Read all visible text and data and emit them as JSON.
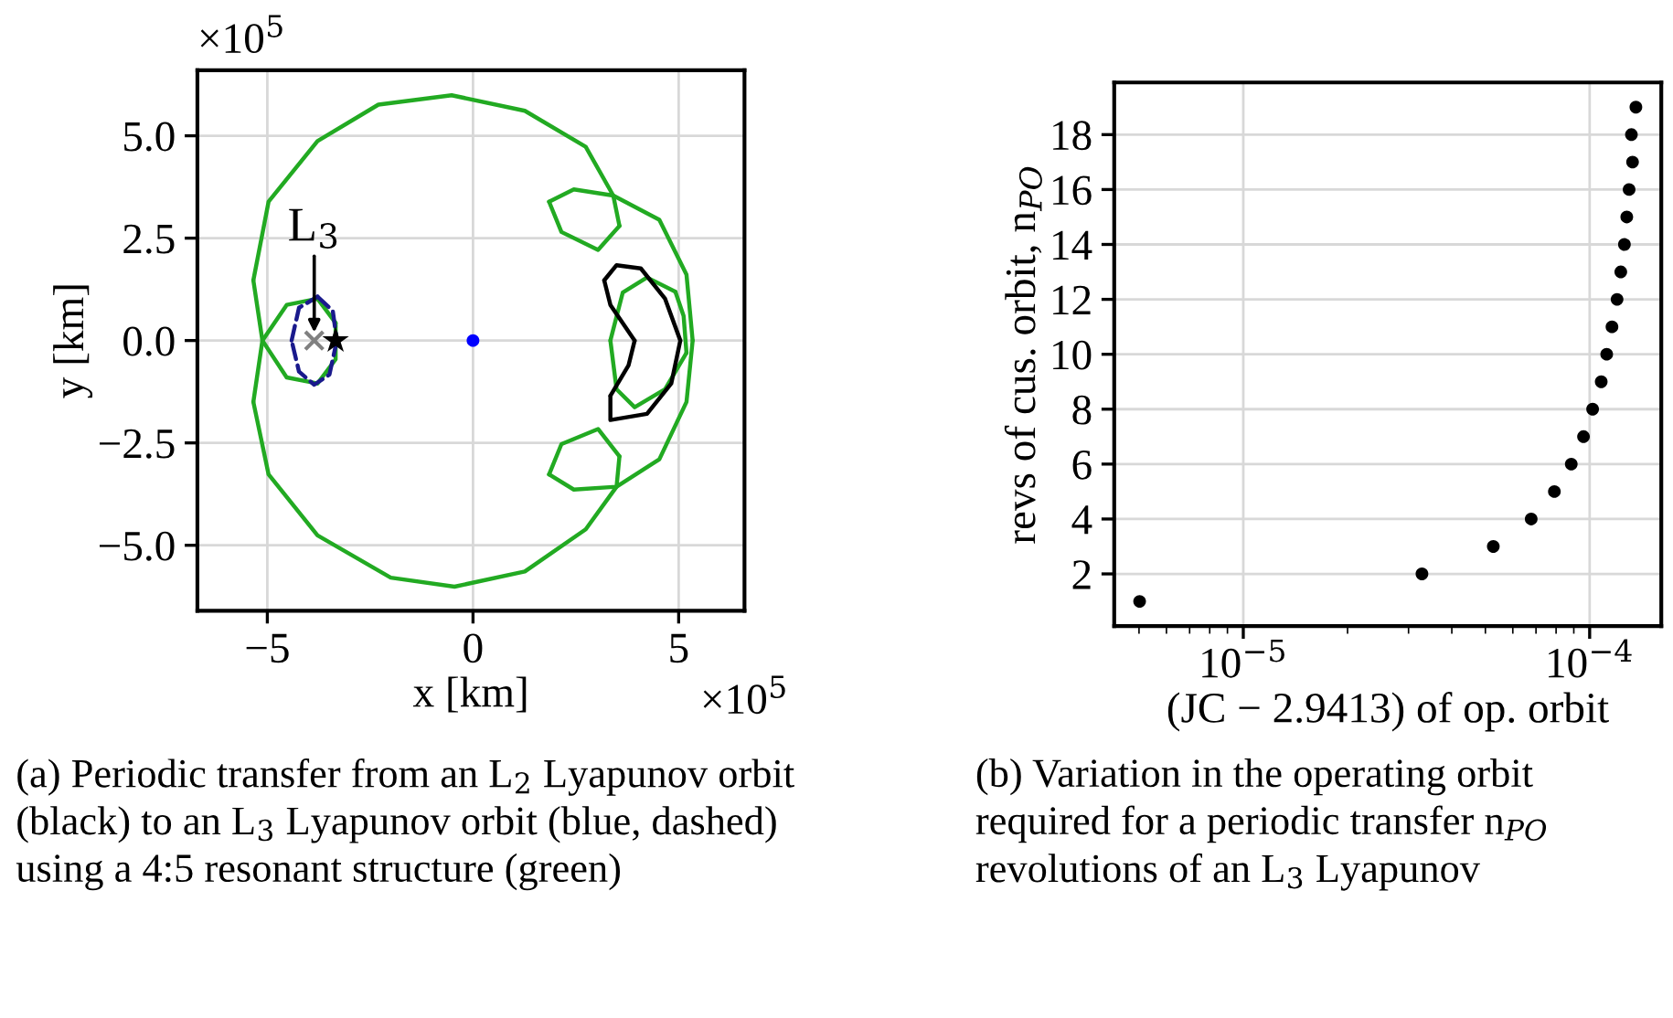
{
  "chart_data": [
    {
      "type": "line",
      "xlabel": "x [km]",
      "ylabel": "y [km]",
      "xlim": [
        -6.7,
        6.6
      ],
      "ylim": [
        -6.6,
        6.6
      ],
      "xticks": [
        {
          "value": -5,
          "label": "−5"
        },
        0,
        5
      ],
      "yticks": [
        {
          "value": -5,
          "label": "−5.0"
        },
        {
          "value": -2.5,
          "label": "−2.5"
        },
        {
          "value": 0,
          "label": "0.0"
        },
        2.5,
        {
          "value": 5,
          "label": "5.0"
        }
      ],
      "grid": true,
      "legend": false,
      "series": [
        {
          "color": "#22aa22",
          "marker": "none",
          "line_style": "solid",
          "x": [
            5.34,
            5.19,
            4.53,
            3.41,
            2.45,
            1.85,
            2.15,
            3.04,
            3.56,
            3.41,
            2.74,
            1.26,
            -0.52,
            -2.3,
            -3.78,
            -4.97,
            -5.34,
            -5.12,
            -4.53,
            -3.78,
            -3.34,
            -3.34,
            -3.78,
            -4.53,
            -5.12,
            -5.34,
            -4.97,
            -3.78,
            -2.0,
            -0.45,
            1.26,
            2.74,
            3.49,
            3.56,
            3.04,
            2.15,
            1.85,
            2.45,
            3.49,
            4.53,
            5.19,
            5.34
          ],
          "values": [
            0,
            1.61,
            2.95,
            3.54,
            3.69,
            3.39,
            2.65,
            2.21,
            2.8,
            3.54,
            4.73,
            5.61,
            5.99,
            5.76,
            4.87,
            3.39,
            1.47,
            0,
            -0.9,
            -1.05,
            -0.46,
            0.43,
            1.02,
            0.87,
            0,
            -1.5,
            -3.27,
            -4.76,
            -5.79,
            -6.01,
            -5.64,
            -4.61,
            -3.57,
            -2.83,
            -2.16,
            -2.53,
            -3.27,
            -3.64,
            -3.57,
            -2.9,
            -1.5,
            0
          ]
        },
        {
          "color": "#22aa22",
          "marker": "none",
          "line_style": "solid",
          "x": [
            4.92,
            4.23,
            3.64,
            3.34,
            3.49,
            3.93,
            4.67,
            5.19,
            5.12,
            4.92
          ],
          "values": [
            1.19,
            1.54,
            1.17,
            0,
            -1.19,
            -1.63,
            -1.19,
            -0.3,
            0.6,
            1.19
          ]
        },
        {
          "color": "#000000",
          "marker": "none",
          "line_style": "solid",
          "x": [
            3.93,
            3.34,
            3.19,
            3.49,
            4.08,
            4.67,
            5.04,
            4.82,
            4.23,
            3.34,
            3.34,
            3.78,
            3.93
          ],
          "values": [
            0,
            0.87,
            1.47,
            1.84,
            1.76,
            1.02,
            0,
            -1.05,
            -1.79,
            -1.94,
            -1.35,
            -0.61,
            0
          ]
        },
        {
          "color": "#1a1a8c",
          "marker": "none",
          "line_style": "dashed",
          "x": [
            -3.78,
            -3.41,
            -3.31,
            -3.49,
            -3.86,
            -4.23,
            -4.41,
            -4.23,
            -3.78
          ],
          "values": [
            1.07,
            0.73,
            0,
            -0.83,
            -1.08,
            -0.76,
            0,
            0.8,
            1.07
          ]
        },
        {
          "type": "scatter",
          "color": "#0000ff",
          "marker": "circle",
          "x": [
            0
          ],
          "values": [
            0
          ]
        },
        {
          "type": "scatter",
          "color": "#808080",
          "marker": "cross",
          "x": [
            -3.86
          ],
          "values": [
            0
          ]
        },
        {
          "type": "scatter",
          "color": "#000000",
          "marker": "star",
          "x": [
            -3.34
          ],
          "values": [
            0
          ]
        }
      ],
      "annotations": [
        {
          "text": "L$_{3}$",
          "x": -3.86,
          "y": 0.2
        },
        "×10$^{5}$",
        "×10$^{5}$",
        "(a) Periodic transfer from an L$_{2}$ Lyapunov orbit (black) to an L$_{3}$ Lyapunov orbit (blue, dashed) using a 4:5 resonant structure (green)"
      ]
    },
    {
      "type": "scatter",
      "xlabel": "(JC − 2.9413) of op. orbit",
      "ylabel": "revs of cus. orbit, n$_{PO}$",
      "log": "x",
      "xlim": [
        4.24e-06,
        0.000161
      ],
      "ylim": [
        0.1,
        19.9
      ],
      "xticks": [
        {
          "value": 1e-05,
          "label": "10$^{−5}$"
        },
        {
          "value": 0.0001,
          "label": "10$^{−4}$"
        }
      ],
      "yticks": [
        2,
        4,
        6,
        8,
        10,
        12,
        14,
        16,
        18
      ],
      "grid": true,
      "legend": false,
      "series": [
        {
          "color": "#000000",
          "marker": "circle",
          "x": [
            5.02e-06,
            3.28e-05,
            5.27e-05,
            6.78e-05,
            7.91e-05,
            8.85e-05,
            9.6e-05,
            0.000102,
            0.000108,
            0.000112,
            0.000116,
            0.00012,
            0.000123,
            0.000126,
            0.000128,
            0.00013,
            0.000133,
            0.000132,
            0.000136
          ],
          "values": [
            1,
            2,
            3,
            4,
            5,
            6,
            7,
            8,
            9,
            10,
            11,
            12,
            13,
            14,
            15,
            16,
            17,
            18,
            19
          ]
        }
      ],
      "annotations": [
        "(b) Variation in the operating orbit required for a periodic transfer n$_{PO}$ revolutions of an L$_{3}$ Lyapunov"
      ]
    }
  ]
}
